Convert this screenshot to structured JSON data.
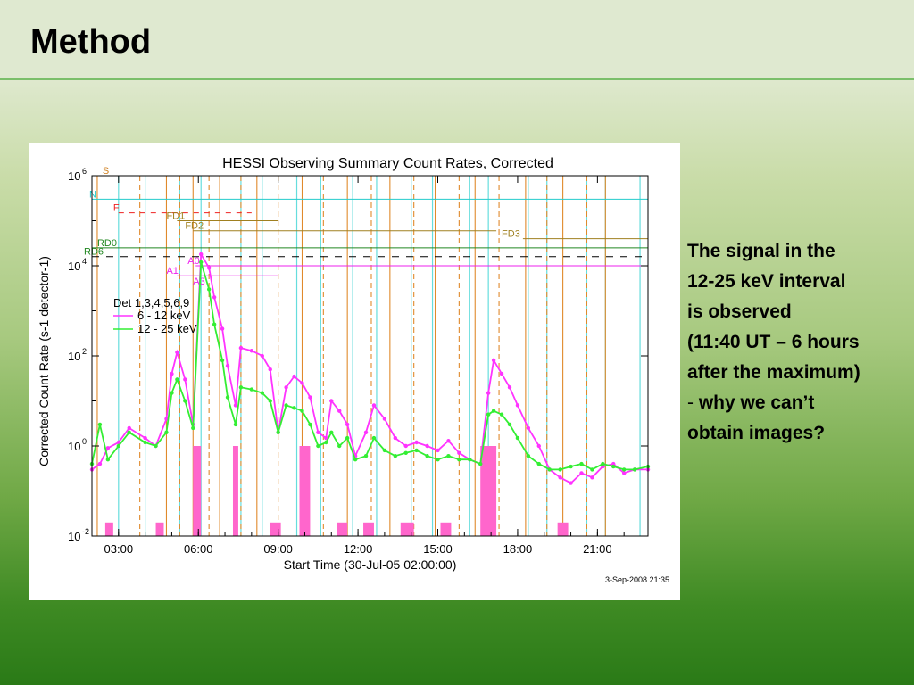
{
  "slide": {
    "title": "Method",
    "caption_lines": [
      "The signal in the",
      "12-25 keV interval",
      "is observed",
      "(11:40 UT – 6 hours",
      "after the maximum)",
      "why we can’t",
      "obtain images?"
    ],
    "caption_dash": "-"
  },
  "colors": {
    "green_low": "#2a7a17",
    "title_rule": "#7bbf6a",
    "series_6_12": "#ff33ff",
    "series_12_25": "#33ee33",
    "saa_marker": "#ff66cc"
  },
  "chart_data": {
    "type": "line",
    "title": "HESSI Observing Summary Count Rates, Corrected",
    "ylabel": "Corrected Count Rate (s-1 detector-1)",
    "xlabel": "Start Time (30-Jul-05 02:00:00)",
    "footer": "3-Sep-2008 21:35",
    "y_scale": "log",
    "ylim": [
      0.01,
      1000000
    ],
    "xlim_hours": [
      2.0,
      22.9
    ],
    "x_ticks": [
      "03:00",
      "06:00",
      "09:00",
      "12:00",
      "15:00",
      "18:00",
      "21:00"
    ],
    "y_ticks": [
      {
        "base": "10",
        "exp": "-2"
      },
      {
        "base": "10",
        "exp": "0"
      },
      {
        "base": "10",
        "exp": "2"
      },
      {
        "base": "10",
        "exp": "4"
      },
      {
        "base": "10",
        "exp": "6"
      }
    ],
    "legend_title": "Det 1,3,4,5,6,9",
    "legend_position": "upper-left",
    "series": [
      {
        "name": "6 - 12 keV",
        "color": "#ff33ff",
        "x": [
          2.0,
          2.3,
          2.6,
          3.0,
          3.4,
          4.0,
          4.4,
          4.8,
          5.0,
          5.2,
          5.5,
          5.8,
          6.1,
          6.4,
          6.6,
          6.9,
          7.1,
          7.4,
          7.6,
          8.0,
          8.4,
          8.7,
          9.0,
          9.3,
          9.6,
          9.9,
          10.2,
          10.5,
          10.8,
          11.0,
          11.3,
          11.6,
          11.9,
          12.3,
          12.6,
          13.0,
          13.4,
          13.8,
          14.2,
          14.6,
          15.0,
          15.4,
          15.8,
          16.2,
          16.6,
          16.9,
          17.1,
          17.4,
          17.7,
          18.0,
          18.4,
          18.8,
          19.2,
          19.6,
          20.0,
          20.4,
          20.8,
          21.2,
          21.6,
          22.0,
          22.4,
          22.9
        ],
        "y": [
          0.3,
          0.4,
          0.9,
          1.2,
          2.5,
          1.5,
          1.0,
          4.0,
          40,
          120,
          30,
          3,
          18000,
          9000,
          2000,
          400,
          60,
          8,
          150,
          130,
          100,
          50,
          2,
          20,
          35,
          25,
          12,
          2,
          1.5,
          10,
          6,
          3,
          0.6,
          2,
          8,
          4,
          1.5,
          1.0,
          1.2,
          1.0,
          0.8,
          1.3,
          0.7,
          0.5,
          0.4,
          15,
          80,
          40,
          20,
          8,
          2.5,
          1.0,
          0.3,
          0.2,
          0.15,
          0.25,
          0.2,
          0.35,
          0.4,
          0.25,
          0.3,
          0.3
        ]
      },
      {
        "name": "12 - 25 keV",
        "color": "#33ee33",
        "x": [
          2.0,
          2.3,
          2.6,
          3.0,
          3.4,
          4.0,
          4.4,
          4.8,
          5.0,
          5.2,
          5.5,
          5.8,
          6.1,
          6.4,
          6.6,
          6.9,
          7.1,
          7.4,
          7.6,
          8.0,
          8.4,
          8.7,
          9.0,
          9.3,
          9.6,
          9.9,
          10.2,
          10.5,
          10.8,
          11.0,
          11.3,
          11.6,
          11.9,
          12.3,
          12.6,
          13.0,
          13.4,
          13.8,
          14.2,
          14.6,
          15.0,
          15.4,
          15.8,
          16.2,
          16.6,
          16.9,
          17.1,
          17.4,
          17.7,
          18.0,
          18.4,
          18.8,
          19.2,
          19.6,
          20.0,
          20.4,
          20.8,
          21.2,
          21.6,
          22.0,
          22.4,
          22.9
        ],
        "y": [
          0.4,
          3,
          0.5,
          1.0,
          2.0,
          1.2,
          1.0,
          2.0,
          15,
          30,
          10,
          2.5,
          12000,
          3000,
          500,
          80,
          12,
          3,
          20,
          18,
          15,
          10,
          2,
          8,
          7,
          6,
          3,
          1.0,
          1.2,
          2,
          1.0,
          1.5,
          0.5,
          0.6,
          1.5,
          0.8,
          0.6,
          0.7,
          0.8,
          0.6,
          0.5,
          0.6,
          0.5,
          0.5,
          0.4,
          5,
          6,
          5,
          3,
          1.5,
          0.6,
          0.4,
          0.3,
          0.3,
          0.35,
          0.4,
          0.3,
          0.4,
          0.35,
          0.3,
          0.3,
          0.35
        ]
      }
    ],
    "night_markers_hours": [
      3.0,
      4.0,
      5.3,
      6.1,
      7.6,
      8.4,
      9.7,
      10.6,
      11.8,
      12.7,
      14.0,
      14.8,
      16.2,
      16.9,
      18.4,
      19.1,
      20.6,
      21.3,
      22.6
    ],
    "orange_markers_hours": [
      2.2,
      3.8,
      4.8,
      5.3,
      5.8,
      6.4,
      6.8,
      7.6,
      8.2,
      9.0,
      9.9,
      10.7,
      11.6,
      12.5,
      13.2,
      14.1,
      14.9,
      15.8,
      16.4,
      17.3,
      18.3,
      19.1,
      19.7,
      20.6,
      21.3
    ],
    "pink_bars": [
      {
        "x0": 2.5,
        "x1": 2.8,
        "y": 0.02
      },
      {
        "x0": 4.4,
        "x1": 4.7,
        "y": 0.02
      },
      {
        "x0": 5.8,
        "x1": 6.1,
        "y": 1.0
      },
      {
        "x0": 7.3,
        "x1": 7.5,
        "y": 1.0
      },
      {
        "x0": 8.7,
        "x1": 9.1,
        "y": 0.02
      },
      {
        "x0": 9.8,
        "x1": 10.2,
        "y": 1.0
      },
      {
        "x0": 11.2,
        "x1": 11.6,
        "y": 0.02
      },
      {
        "x0": 12.2,
        "x1": 12.6,
        "y": 0.02
      },
      {
        "x0": 13.6,
        "x1": 14.1,
        "y": 0.02
      },
      {
        "x0": 15.1,
        "x1": 15.5,
        "y": 0.02
      },
      {
        "x0": 16.6,
        "x1": 17.2,
        "y": 1.0
      },
      {
        "x0": 19.5,
        "x1": 19.9,
        "y": 0.02
      }
    ],
    "flag_labels": [
      {
        "text": "S",
        "color": "#d08020",
        "hour": 2.4,
        "level": "1e6"
      },
      {
        "text": "N",
        "color": "#22cccc",
        "hour": 1.9,
        "level": "3e5"
      },
      {
        "text": "F",
        "color": "#ee2222",
        "hour": 2.8,
        "level": "1.5e5"
      },
      {
        "text": "FD1",
        "color": "#a08020",
        "hour": 4.8,
        "level": "1e5"
      },
      {
        "text": "FD2",
        "color": "#a08020",
        "hour": 5.5,
        "level": "6e4"
      },
      {
        "text": "FD3",
        "color": "#a08020",
        "hour": 17.4,
        "level": "4e4"
      },
      {
        "text": "RD0",
        "color": "#228822",
        "hour": 2.2,
        "level": "2.5e4"
      },
      {
        "text": "RD6",
        "color": "#228822",
        "hour": 1.7,
        "level": "1.6e4"
      },
      {
        "text": "A0",
        "color": "#ee22ee",
        "hour": 5.6,
        "level": "1e4"
      },
      {
        "text": "A1",
        "color": "#ee22ee",
        "hour": 4.8,
        "level": "6e3"
      },
      {
        "text": "A3",
        "color": "#ee22ee",
        "hour": 5.8,
        "level": "3.5e3"
      }
    ]
  }
}
